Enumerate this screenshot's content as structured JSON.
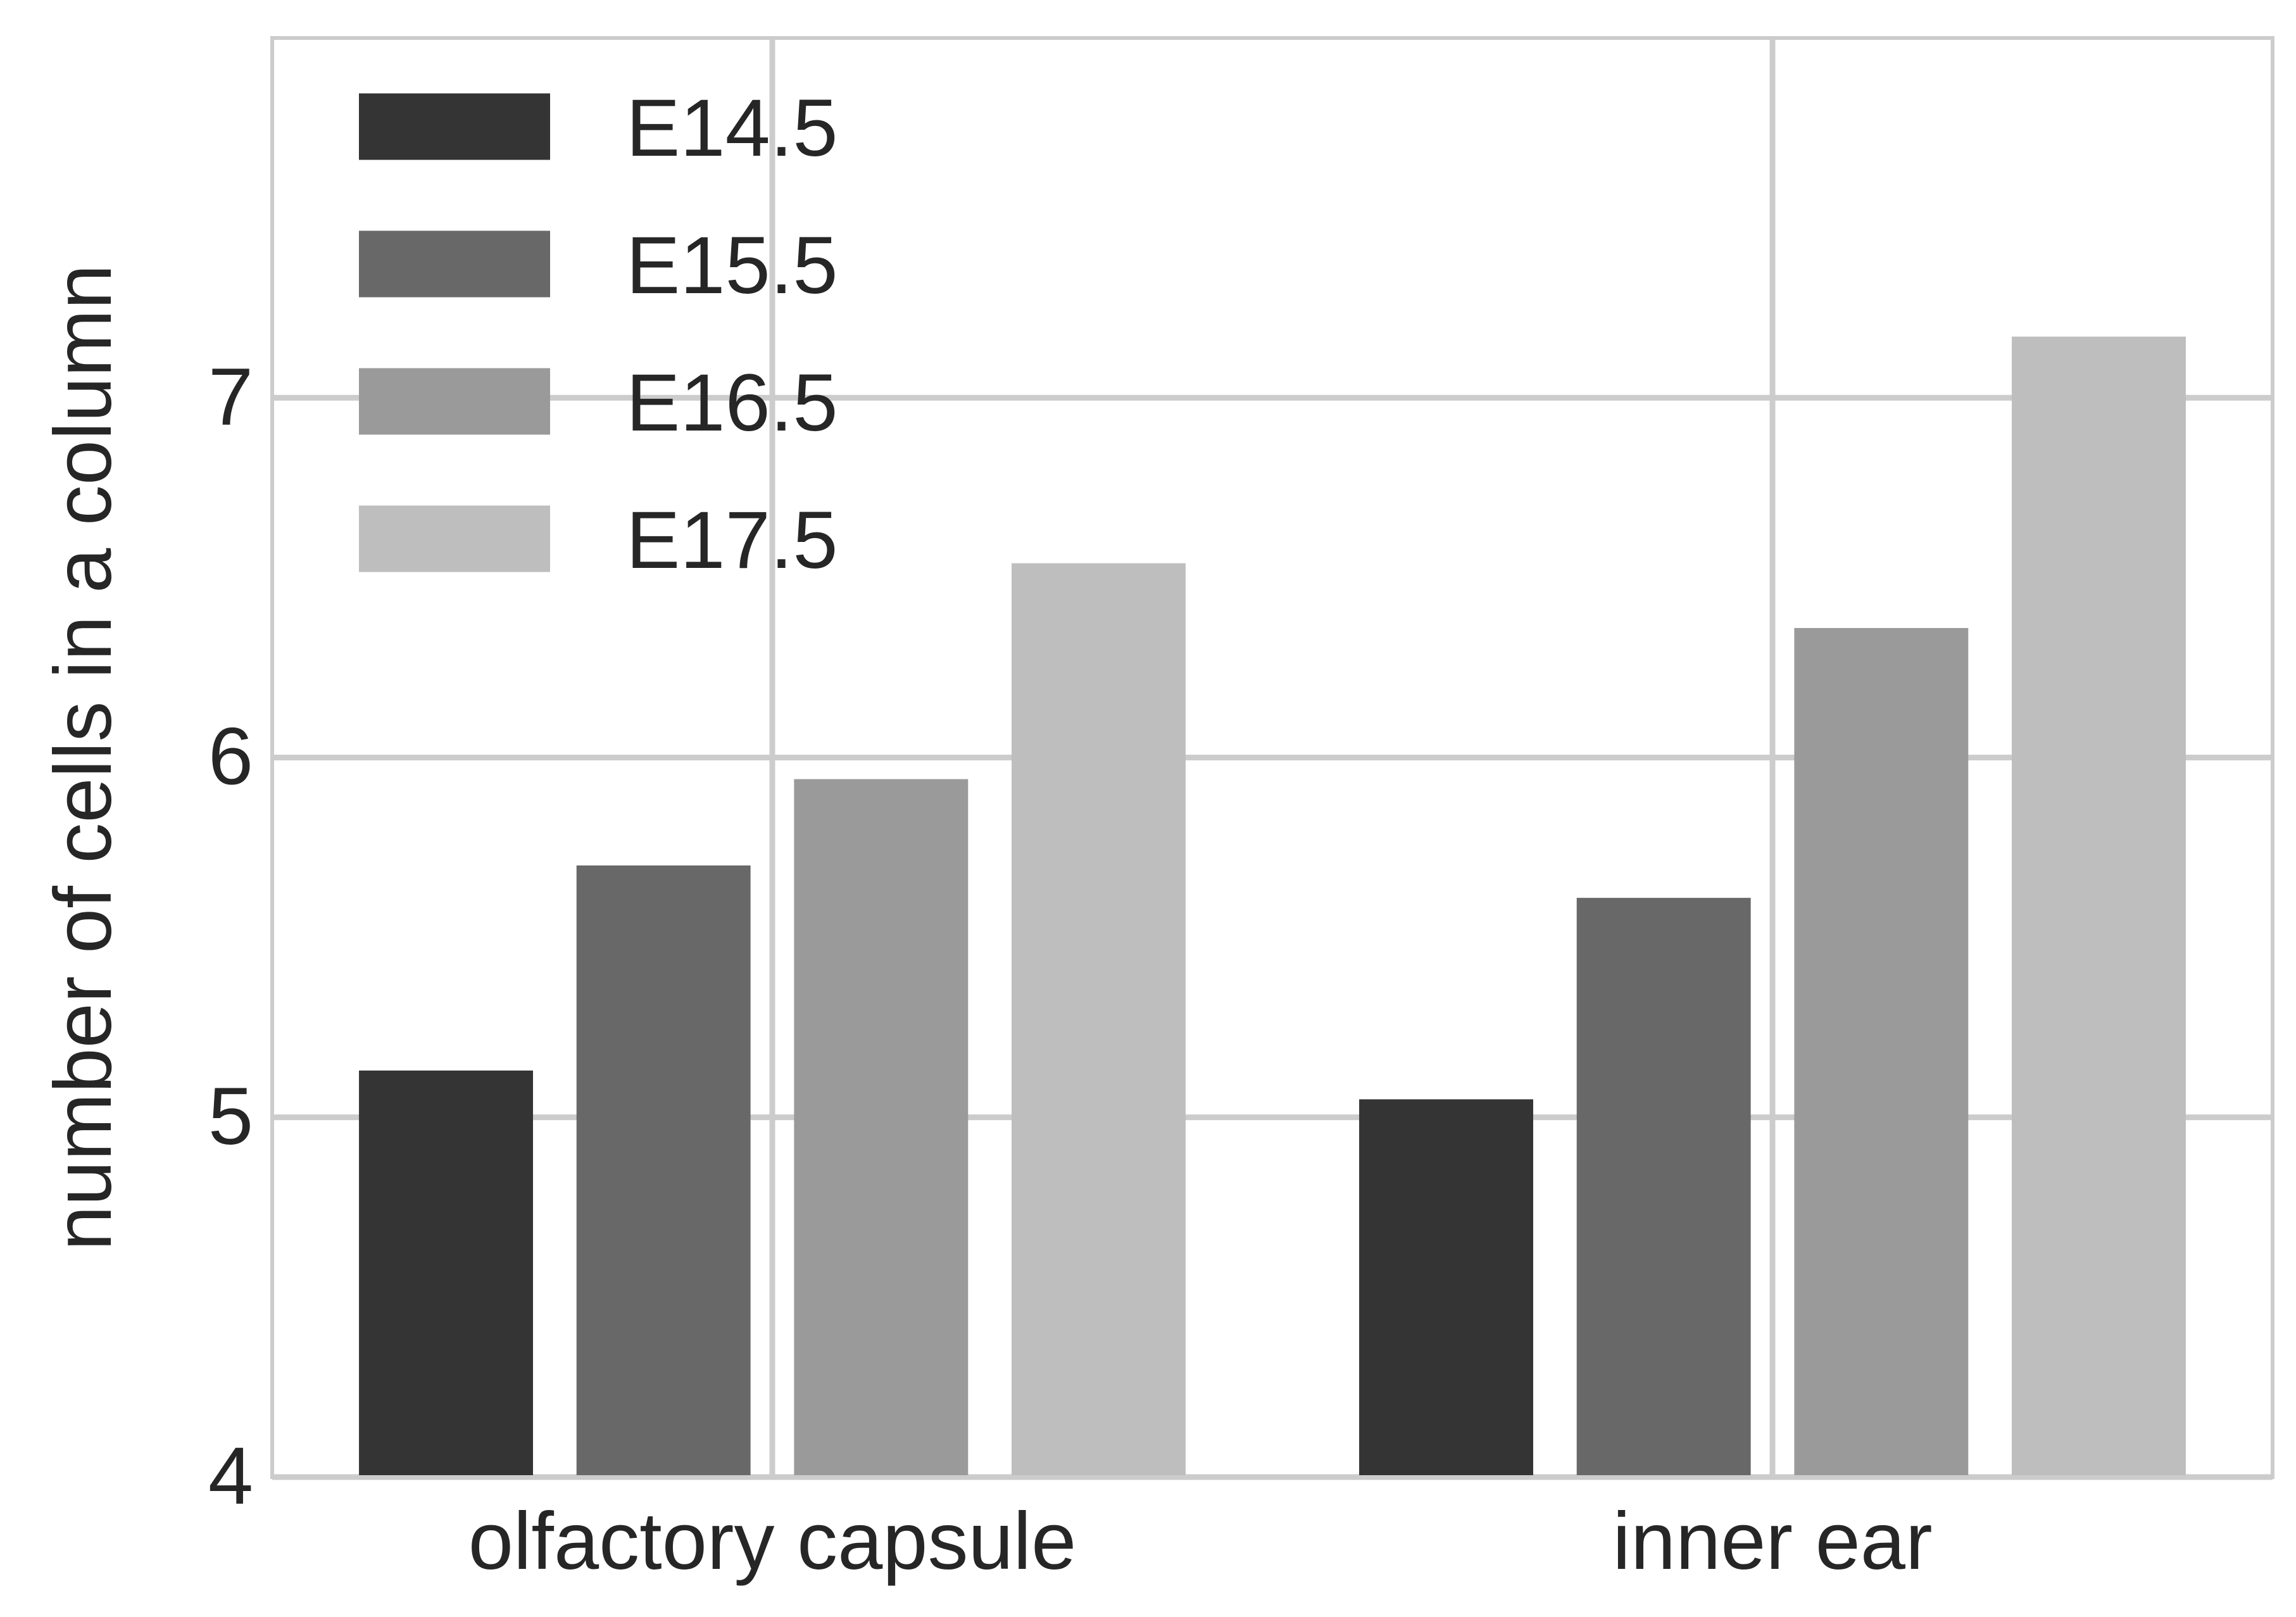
{
  "chart_data": {
    "type": "bar",
    "title": "",
    "xlabel": "",
    "ylabel": "number of cells in a column",
    "categories": [
      "olfactory capsule",
      "inner ear"
    ],
    "series": [
      {
        "name": "E14.5",
        "color": "#343434",
        "values": [
          5.13,
          5.05
        ]
      },
      {
        "name": "E15.5",
        "color": "#686868",
        "values": [
          5.7,
          5.61
        ]
      },
      {
        "name": "E16.5",
        "color": "#9a9a9a",
        "values": [
          5.94,
          6.36
        ]
      },
      {
        "name": "E17.5",
        "color": "#bebebe",
        "values": [
          6.54,
          7.17
        ]
      }
    ],
    "ylim": [
      4,
      8
    ],
    "yticks": [
      "4",
      "5",
      "6",
      "7"
    ],
    "grid": true,
    "legend_position": "top-left",
    "colors": {
      "grid": "#cccccc",
      "text": "#262626",
      "background": "#ffffff"
    }
  }
}
